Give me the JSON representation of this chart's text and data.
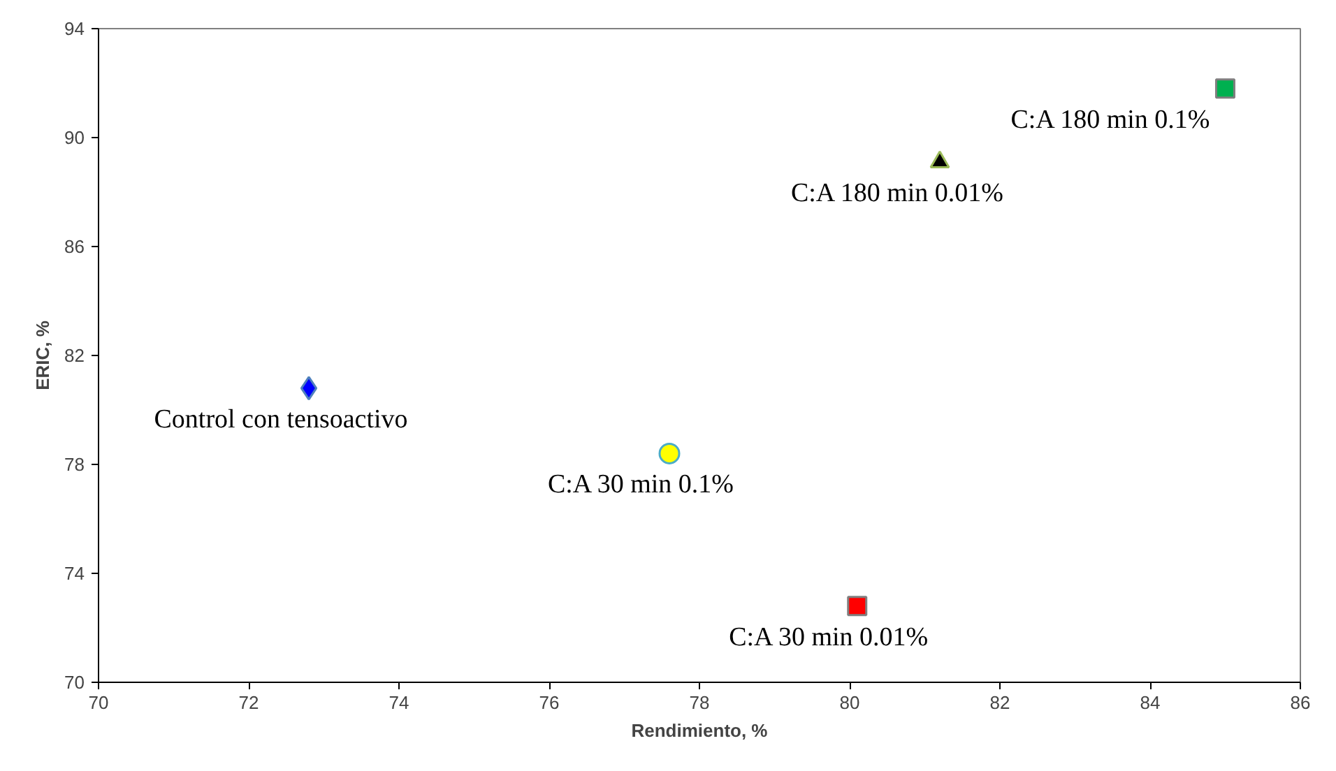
{
  "chart_data": {
    "type": "scatter",
    "xlabel": "Rendimiento, %",
    "ylabel": "ERIC, %",
    "xlim": [
      70,
      86
    ],
    "ylim": [
      70,
      94
    ],
    "xticks": [
      70,
      72,
      74,
      76,
      78,
      80,
      82,
      84,
      86
    ],
    "yticks": [
      70,
      74,
      78,
      82,
      86,
      90,
      94
    ],
    "grid": false,
    "series": [
      {
        "name": "Control con tensoactivo",
        "color": "#0000ff",
        "marker": "diamond",
        "x": [
          72.8
        ],
        "values": [
          80.8
        ]
      },
      {
        "name": "C:A 30 min 0.1%",
        "color": "#ffff00",
        "marker": "circle",
        "x": [
          77.6
        ],
        "values": [
          78.4
        ]
      },
      {
        "name": "C:A 30 min 0.01%",
        "color": "#ff0000",
        "marker": "square",
        "x": [
          80.1
        ],
        "values": [
          72.8
        ]
      },
      {
        "name": "C:A 180 min 0.01%",
        "color": "#000000",
        "marker": "triangle",
        "x": [
          81.2
        ],
        "values": [
          89.1
        ]
      },
      {
        "name": "C:A 180 min 0.1%",
        "color": "#00b050",
        "marker": "square",
        "x": [
          85.0
        ],
        "values": [
          91.8
        ]
      }
    ]
  }
}
